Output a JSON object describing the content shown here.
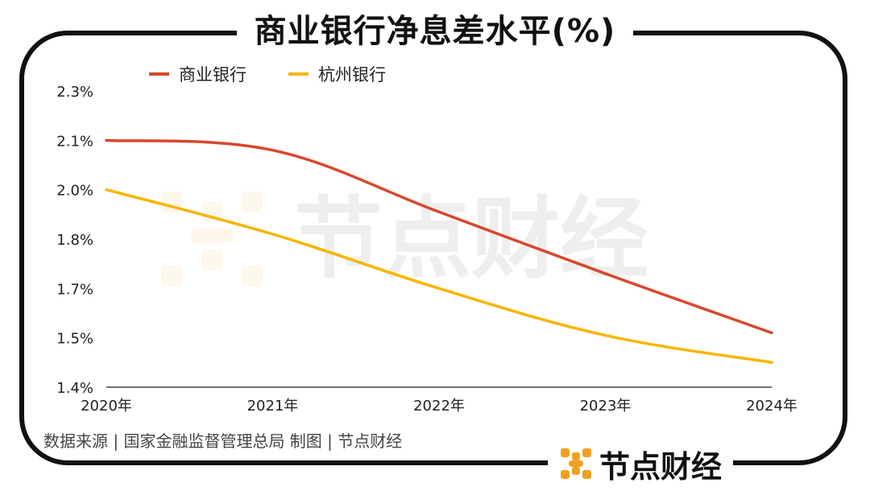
{
  "title": "商业银行净息差水平(%)",
  "source_text": "数据来源 | 国家金融监督管理总局  制图 | 节点财经",
  "brand": {
    "name": "节点财经",
    "watermark": "节点财经"
  },
  "colors": {
    "commercial": "#d9472b",
    "hangzhou": "#f7b500",
    "axis": "#444444",
    "text": "#222222",
    "frame": "#111111"
  },
  "chart_data": {
    "type": "line",
    "title": "商业银行净息差水平(%)",
    "xlabel": "",
    "ylabel": "",
    "x": [
      "2020年",
      "2021年",
      "2022年",
      "2023年",
      "2024年"
    ],
    "yticks": [
      "2.3%",
      "2.1%",
      "2.0%",
      "1.8%",
      "1.7%",
      "1.5%",
      "1.4%"
    ],
    "ytick_values": [
      2.3,
      2.1,
      2.0,
      1.8,
      1.7,
      1.5,
      1.4
    ],
    "ylim": [
      1.4,
      2.3
    ],
    "legend_position": "top",
    "series": [
      {
        "name": "商业银行",
        "values": [
          2.1,
          2.08,
          1.91,
          1.73,
          1.52
        ]
      },
      {
        "name": "杭州银行",
        "values": [
          2.0,
          1.82,
          1.7,
          1.51,
          1.45
        ]
      }
    ]
  }
}
